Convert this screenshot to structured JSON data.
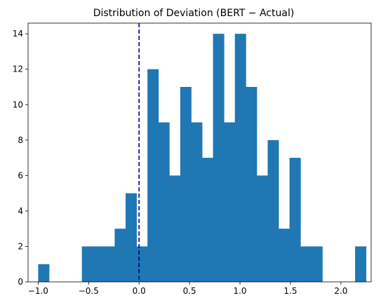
{
  "chart_data": {
    "type": "bar",
    "title": "Distribution of Deviation (BERT − Actual)",
    "xlabel": "",
    "ylabel": "",
    "xlim": [
      -1.1,
      2.3
    ],
    "ylim": [
      0,
      14.6
    ],
    "x_ticks": [
      -1.0,
      -0.5,
      0.0,
      0.5,
      1.0,
      1.5,
      2.0
    ],
    "x_tick_labels": [
      "−1.0",
      "−0.5",
      "0.0",
      "0.5",
      "1.0",
      "1.5",
      "2.0"
    ],
    "y_ticks": [
      0,
      2,
      4,
      6,
      8,
      10,
      12,
      14
    ],
    "y_tick_labels": [
      "0",
      "2",
      "4",
      "6",
      "8",
      "10",
      "12",
      "14"
    ],
    "bin_start": -1.0,
    "bin_width": 0.1083,
    "counts": [
      1,
      0,
      0,
      0,
      2,
      2,
      2,
      3,
      5,
      2,
      12,
      9,
      6,
      11,
      9,
      7,
      14,
      9,
      14,
      11,
      6,
      8,
      3,
      7,
      2,
      2,
      0,
      0,
      0,
      2
    ],
    "vline_x": 0.0,
    "bar_color": "#1f77b4",
    "vline_color": "#00008b",
    "grid": false,
    "legend": "none"
  }
}
